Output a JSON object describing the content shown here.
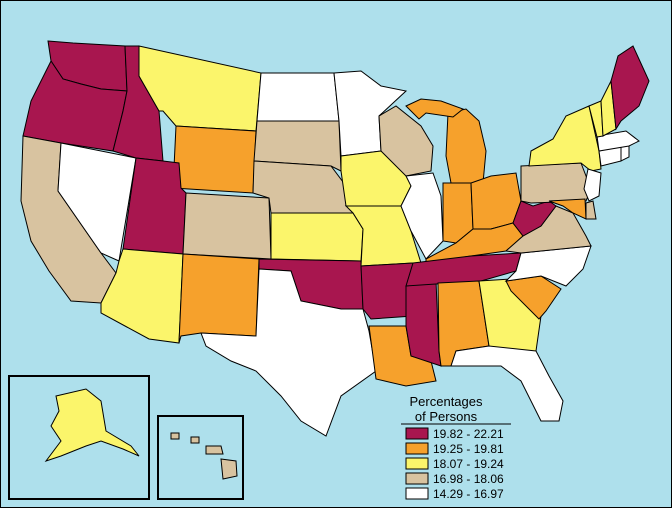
{
  "colors": {
    "water": "#aee0ec",
    "c1": "#a8164f",
    "c2": "#f6a12c",
    "c3": "#fbf56b",
    "c4": "#d8c3a0",
    "c5": "#ffffff"
  },
  "legend": {
    "title_line1": "Percentages",
    "title_line2": "of Persons",
    "items": [
      {
        "label": "19.82 - 22.21",
        "color": "#a8164f"
      },
      {
        "label": "19.25 - 19.81",
        "color": "#f6a12c"
      },
      {
        "label": "18.07 - 19.24",
        "color": "#fbf56b"
      },
      {
        "label": "16.98 - 18.06",
        "color": "#d8c3a0"
      },
      {
        "label": "14.29 - 16.97",
        "color": "#ffffff"
      }
    ]
  },
  "states": {
    "WA": "c1",
    "OR": "c1",
    "ID": "c1",
    "UT": "c1",
    "OK": "c1",
    "AR": "c1",
    "MS": "c1",
    "TN": "c1",
    "WV": "c1",
    "ME": "c1",
    "WY": "c2",
    "NM": "c2",
    "MI": "c2",
    "IN": "c2",
    "OH": "c2",
    "KY": "c2",
    "LA": "c2",
    "AL": "c2",
    "SC": "c2",
    "MD": "c2",
    "MT": "c3",
    "AZ": "c3",
    "IA": "c3",
    "KS": "c3",
    "MO": "c3",
    "GA": "c3",
    "NY": "c3",
    "VT": "c3",
    "NH": "c3",
    "AK": "c3",
    "CA": "c4",
    "CO": "c4",
    "SD": "c4",
    "NE": "c4",
    "WI": "c4",
    "PA": "c4",
    "VA": "c4",
    "DE": "c4",
    "HI": "c4",
    "NV": "c5",
    "ND": "c5",
    "MN": "c5",
    "TX": "c5",
    "IL": "c5",
    "NC": "c5",
    "FL": "c5",
    "NJ": "c5",
    "CT": "c5",
    "MA": "c5",
    "RI": "c5"
  }
}
